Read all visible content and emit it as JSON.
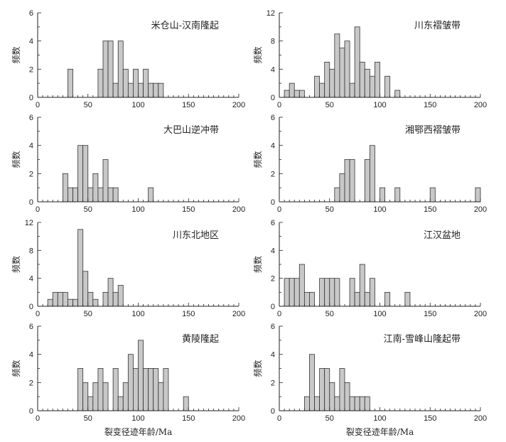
{
  "figure": {
    "xlabel": "裂变径迹年龄/Ma"
  },
  "chart_data": [
    {
      "type": "bar",
      "title": "米仓山-汉南隆起",
      "ylabel": "频数",
      "xlim": [
        0,
        200
      ],
      "ylim": [
        0,
        6
      ],
      "yticks": [
        0,
        2,
        4,
        6
      ],
      "xticks": [
        0,
        50,
        100,
        150,
        200
      ],
      "bin_width": 5,
      "bins": [
        [
          30,
          2
        ],
        [
          60,
          2
        ],
        [
          65,
          4
        ],
        [
          70,
          4
        ],
        [
          75,
          1
        ],
        [
          80,
          4
        ],
        [
          85,
          2
        ],
        [
          90,
          1
        ],
        [
          95,
          2
        ],
        [
          100,
          1
        ],
        [
          105,
          2
        ],
        [
          110,
          1
        ],
        [
          115,
          1
        ],
        [
          120,
          1
        ]
      ]
    },
    {
      "type": "bar",
      "title": "川东褶皱带",
      "ylabel": "频数",
      "xlim": [
        0,
        200
      ],
      "ylim": [
        0,
        12
      ],
      "yticks": [
        0,
        4,
        8,
        12
      ],
      "xticks": [
        0,
        50,
        100,
        150,
        200
      ],
      "bin_width": 5,
      "bins": [
        [
          5,
          1
        ],
        [
          10,
          2
        ],
        [
          15,
          1
        ],
        [
          20,
          1
        ],
        [
          35,
          3
        ],
        [
          40,
          2
        ],
        [
          45,
          5
        ],
        [
          50,
          4
        ],
        [
          55,
          9
        ],
        [
          60,
          7
        ],
        [
          65,
          8
        ],
        [
          70,
          2
        ],
        [
          75,
          10
        ],
        [
          80,
          5
        ],
        [
          85,
          4
        ],
        [
          90,
          3
        ],
        [
          95,
          5
        ],
        [
          105,
          3
        ],
        [
          115,
          1
        ]
      ]
    },
    {
      "type": "bar",
      "title": "大巴山逆冲带",
      "ylabel": "频数",
      "xlim": [
        0,
        200
      ],
      "ylim": [
        0,
        6
      ],
      "yticks": [
        0,
        2,
        4,
        6
      ],
      "xticks": [
        0,
        50,
        100,
        150,
        200
      ],
      "bin_width": 5,
      "bins": [
        [
          25,
          2
        ],
        [
          30,
          1
        ],
        [
          35,
          1
        ],
        [
          40,
          4
        ],
        [
          45,
          4
        ],
        [
          50,
          1
        ],
        [
          55,
          2
        ],
        [
          60,
          1
        ],
        [
          65,
          3
        ],
        [
          70,
          1
        ],
        [
          75,
          1
        ],
        [
          110,
          1
        ]
      ]
    },
    {
      "type": "bar",
      "title": "湘鄂西褶皱带",
      "ylabel": "频数",
      "xlim": [
        0,
        200
      ],
      "ylim": [
        0,
        6
      ],
      "yticks": [
        0,
        2,
        4,
        6
      ],
      "xticks": [
        0,
        50,
        100,
        150,
        200
      ],
      "bin_width": 5,
      "bins": [
        [
          55,
          1
        ],
        [
          60,
          2
        ],
        [
          65,
          3
        ],
        [
          70,
          3
        ],
        [
          85,
          3
        ],
        [
          90,
          4
        ],
        [
          100,
          1
        ],
        [
          115,
          1
        ],
        [
          150,
          1
        ],
        [
          195,
          1
        ]
      ]
    },
    {
      "type": "bar",
      "title": "川东北地区",
      "ylabel": "频数",
      "xlim": [
        0,
        200
      ],
      "ylim": [
        0,
        12
      ],
      "yticks": [
        0,
        4,
        8,
        12
      ],
      "xticks": [
        0,
        50,
        100,
        150,
        200
      ],
      "bin_width": 5,
      "bins": [
        [
          10,
          1
        ],
        [
          15,
          2
        ],
        [
          20,
          2
        ],
        [
          25,
          2
        ],
        [
          30,
          1
        ],
        [
          35,
          1
        ],
        [
          40,
          11
        ],
        [
          45,
          5
        ],
        [
          50,
          2
        ],
        [
          55,
          1
        ],
        [
          65,
          2
        ],
        [
          70,
          4
        ],
        [
          75,
          2
        ],
        [
          80,
          3
        ]
      ]
    },
    {
      "type": "bar",
      "title": "江汉盆地",
      "ylabel": "频数",
      "xlim": [
        0,
        200
      ],
      "ylim": [
        0,
        6
      ],
      "yticks": [
        0,
        2,
        4,
        6
      ],
      "xticks": [
        0,
        50,
        100,
        150,
        200
      ],
      "bin_width": 5,
      "bins": [
        [
          5,
          2
        ],
        [
          10,
          2
        ],
        [
          15,
          2
        ],
        [
          20,
          3
        ],
        [
          25,
          1
        ],
        [
          30,
          1
        ],
        [
          40,
          2
        ],
        [
          45,
          2
        ],
        [
          50,
          2
        ],
        [
          55,
          2
        ],
        [
          70,
          2
        ],
        [
          75,
          1
        ],
        [
          80,
          3
        ],
        [
          85,
          1
        ],
        [
          90,
          2
        ],
        [
          105,
          1
        ],
        [
          125,
          1
        ]
      ]
    },
    {
      "type": "bar",
      "title": "黄陵隆起",
      "ylabel": "频数",
      "xlim": [
        0,
        200
      ],
      "ylim": [
        0,
        6
      ],
      "yticks": [
        0,
        2,
        4,
        6
      ],
      "xticks": [
        0,
        50,
        100,
        150,
        200
      ],
      "bin_width": 5,
      "bins": [
        [
          40,
          3
        ],
        [
          45,
          2
        ],
        [
          50,
          1
        ],
        [
          55,
          2
        ],
        [
          60,
          3
        ],
        [
          65,
          2
        ],
        [
          75,
          3
        ],
        [
          80,
          1
        ],
        [
          85,
          2
        ],
        [
          90,
          4
        ],
        [
          95,
          3
        ],
        [
          100,
          5
        ],
        [
          105,
          3
        ],
        [
          110,
          3
        ],
        [
          115,
          3
        ],
        [
          120,
          2
        ],
        [
          125,
          3
        ],
        [
          145,
          1
        ]
      ]
    },
    {
      "type": "bar",
      "title": "江南-雪峰山隆起带",
      "ylabel": "频数",
      "xlim": [
        0,
        200
      ],
      "ylim": [
        0,
        6
      ],
      "yticks": [
        0,
        2,
        4,
        6
      ],
      "xticks": [
        0,
        50,
        100,
        150,
        200
      ],
      "bin_width": 5,
      "bins": [
        [
          25,
          1
        ],
        [
          30,
          4
        ],
        [
          35,
          1
        ],
        [
          40,
          3
        ],
        [
          45,
          3
        ],
        [
          50,
          2
        ],
        [
          55,
          1
        ],
        [
          60,
          3
        ],
        [
          65,
          2
        ],
        [
          70,
          1
        ],
        [
          75,
          1
        ],
        [
          80,
          1
        ],
        [
          85,
          1
        ]
      ]
    }
  ]
}
